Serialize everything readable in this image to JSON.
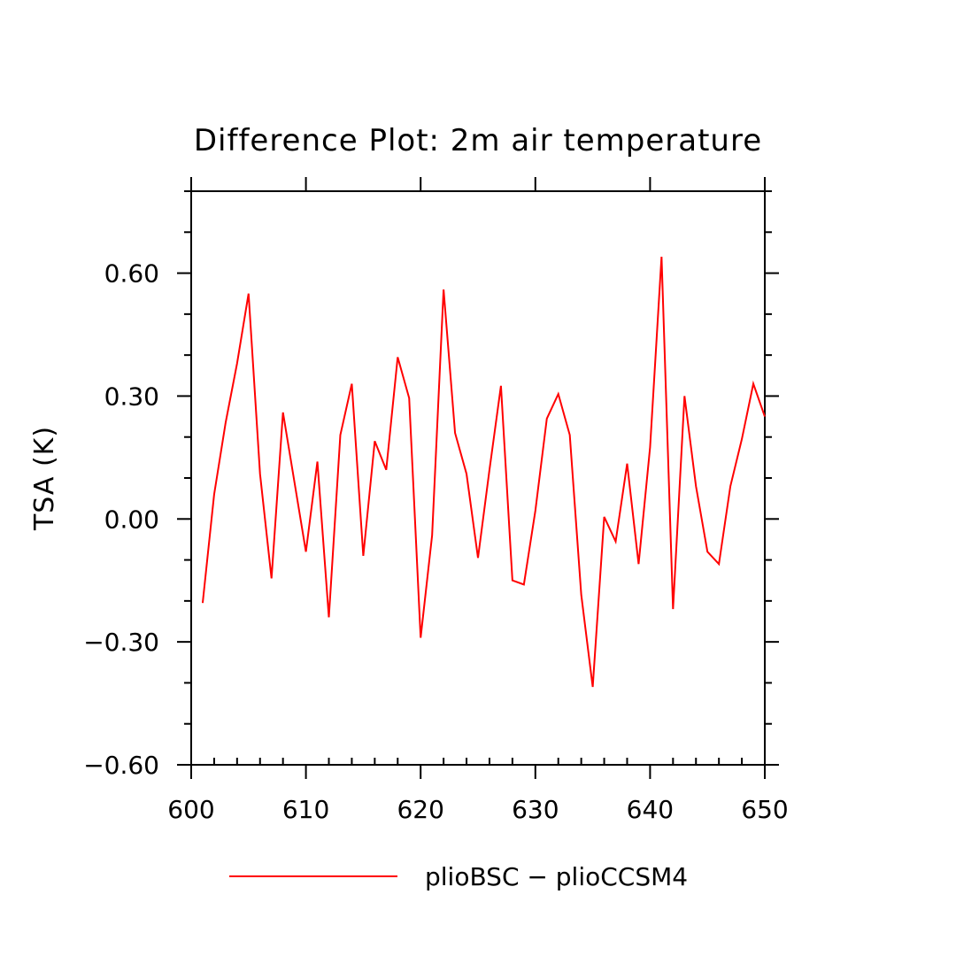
{
  "chart_data": {
    "type": "line",
    "title": "Difference Plot: 2m air temperature",
    "xlabel": "",
    "ylabel": "TSA  (K)",
    "xlim": [
      600,
      650
    ],
    "ylim": [
      -0.6,
      0.8
    ],
    "x_ticks": [
      600,
      610,
      620,
      630,
      640,
      650
    ],
    "x_tick_labels": [
      "600",
      "610",
      "620",
      "630",
      "640",
      "650"
    ],
    "y_ticks": [
      -0.6,
      -0.3,
      0.0,
      0.3,
      0.6
    ],
    "y_tick_labels": [
      "−0.60",
      "−0.30",
      "0.00",
      "0.30",
      "0.60"
    ],
    "grid": false,
    "legend_position": "bottom-center",
    "series": [
      {
        "name": "plioBSC − plioCCSM4",
        "color": "#ff0000",
        "x": [
          601,
          602,
          603,
          604,
          605,
          606,
          607,
          608,
          609,
          610,
          611,
          612,
          613,
          614,
          615,
          616,
          617,
          618,
          619,
          620,
          621,
          622,
          623,
          624,
          625,
          626,
          627,
          628,
          629,
          630,
          631,
          632,
          633,
          634,
          635,
          636,
          637,
          638,
          639,
          640,
          641,
          642,
          643,
          644,
          645,
          646,
          647,
          648,
          649,
          650
        ],
        "values": [
          -0.205,
          0.06,
          0.235,
          0.38,
          0.55,
          0.11,
          -0.145,
          0.26,
          0.09,
          -0.08,
          0.14,
          -0.24,
          0.205,
          0.33,
          -0.09,
          0.19,
          0.12,
          0.395,
          0.295,
          -0.29,
          -0.04,
          0.56,
          0.21,
          0.11,
          -0.095,
          0.12,
          0.325,
          -0.15,
          -0.16,
          0.02,
          0.245,
          0.305,
          0.205,
          -0.185,
          -0.41,
          0.005,
          -0.055,
          0.135,
          -0.11,
          0.175,
          0.64,
          -0.22,
          0.3,
          0.08,
          -0.08,
          -0.11,
          0.08,
          0.195,
          0.33,
          0.25
        ]
      }
    ]
  }
}
